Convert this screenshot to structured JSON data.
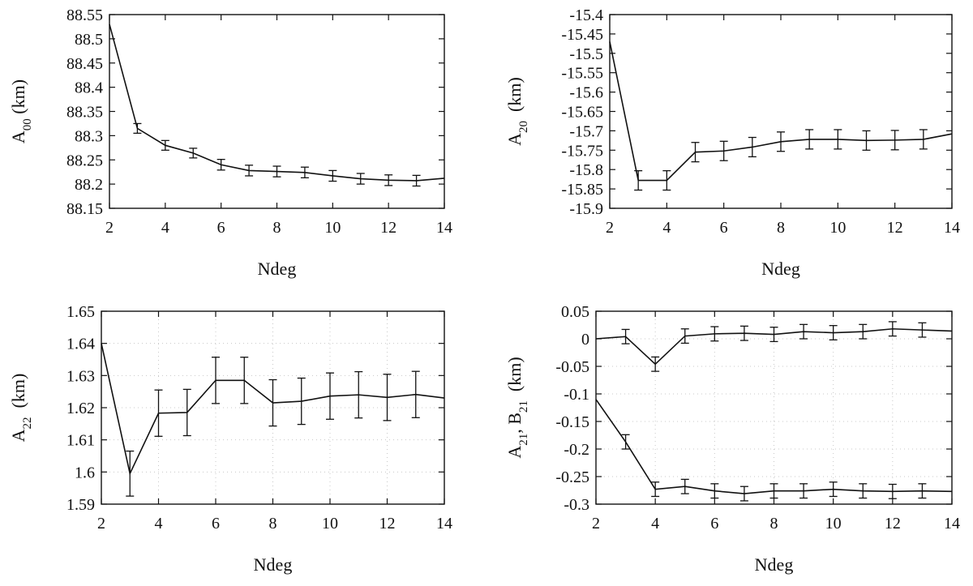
{
  "chart_data": [
    {
      "type": "line",
      "xlabel": "Ndeg",
      "ylabel": {
        "base": "A",
        "sub": "00",
        "unit": " (km)"
      },
      "xlim": [
        2,
        14
      ],
      "ylim": [
        88.15,
        88.55
      ],
      "xticks": [
        2,
        4,
        6,
        8,
        10,
        12,
        14
      ],
      "yticks": [
        "88.15",
        "88.2",
        "88.25",
        "88.3",
        "88.35",
        "88.4",
        "88.45",
        "88.5",
        "88.55"
      ],
      "grid": false,
      "series": [
        {
          "x": [
            2,
            3,
            4,
            5,
            6,
            7,
            8,
            9,
            10,
            11,
            12,
            13,
            14
          ],
          "y": [
            88.53,
            88.315,
            88.28,
            88.264,
            88.24,
            88.228,
            88.226,
            88.224,
            88.217,
            88.211,
            88.208,
            88.207,
            88.212
          ],
          "err": [
            0,
            0.01,
            0.01,
            0.01,
            0.011,
            0.011,
            0.011,
            0.011,
            0.011,
            0.011,
            0.011,
            0.011,
            0
          ]
        }
      ]
    },
    {
      "type": "line",
      "xlabel": "Ndeg",
      "ylabel": {
        "base": "A",
        "sub": "20",
        "unit": "  (km)"
      },
      "xlim": [
        2,
        14
      ],
      "ylim": [
        -15.9,
        -15.4
      ],
      "xticks": [
        2,
        4,
        6,
        8,
        10,
        12,
        14
      ],
      "yticks": [
        "-15.9",
        "-15.85",
        "-15.8",
        "-15.75",
        "-15.7",
        "-15.65",
        "-15.6",
        "-15.55",
        "-15.5",
        "-15.45",
        "-15.4"
      ],
      "grid": false,
      "series": [
        {
          "x": [
            2,
            3,
            4,
            5,
            6,
            7,
            8,
            9,
            10,
            11,
            12,
            13,
            14
          ],
          "y": [
            -15.47,
            -15.828,
            -15.828,
            -15.755,
            -15.752,
            -15.742,
            -15.728,
            -15.722,
            -15.722,
            -15.725,
            -15.724,
            -15.722,
            -15.708
          ],
          "err": [
            0,
            0.025,
            0.025,
            0.025,
            0.025,
            0.025,
            0.025,
            0.025,
            0.025,
            0.025,
            0.025,
            0.025,
            0
          ]
        }
      ]
    },
    {
      "type": "line",
      "xlabel": "Ndeg",
      "ylabel": {
        "base": "A",
        "sub": "22",
        "unit": "  (km)"
      },
      "xlim": [
        2,
        14
      ],
      "ylim": [
        1.59,
        1.65
      ],
      "xticks": [
        2,
        4,
        6,
        8,
        10,
        12,
        14
      ],
      "yticks": [
        "1.59",
        "1.6",
        "1.61",
        "1.62",
        "1.63",
        "1.64",
        "1.65"
      ],
      "grid": true,
      "series": [
        {
          "x": [
            2,
            3,
            4,
            5,
            6,
            7,
            8,
            9,
            10,
            11,
            12,
            13,
            14
          ],
          "y": [
            1.64,
            1.5995,
            1.6183,
            1.6185,
            1.6285,
            1.6285,
            1.6215,
            1.622,
            1.6236,
            1.624,
            1.6232,
            1.6241,
            1.623
          ],
          "err": [
            0,
            0.007,
            0.0072,
            0.0072,
            0.0072,
            0.0072,
            0.0072,
            0.0072,
            0.0072,
            0.0072,
            0.0072,
            0.0072,
            0
          ]
        }
      ]
    },
    {
      "type": "line",
      "xlabel": "Ndeg",
      "ylabel": {
        "base": "A",
        "sub": "21",
        "mid": ", B",
        "sub2": "21",
        "unit": "  (km)"
      },
      "xlim": [
        2,
        14
      ],
      "ylim": [
        -0.3,
        0.05
      ],
      "xticks": [
        2,
        4,
        6,
        8,
        10,
        12,
        14
      ],
      "yticks": [
        "-0.3",
        "-0.25",
        "-0.2",
        "-0.15",
        "-0.1",
        "-0.05",
        "0",
        "0.05"
      ],
      "grid": true,
      "series": [
        {
          "x": [
            2,
            3,
            4,
            5,
            6,
            7,
            8,
            9,
            10,
            11,
            12,
            13,
            14
          ],
          "y": [
            0.0,
            0.004,
            -0.046,
            0.005,
            0.009,
            0.01,
            0.008,
            0.013,
            0.011,
            0.013,
            0.018,
            0.016,
            0.014
          ],
          "err": [
            0,
            0.013,
            0.013,
            0.013,
            0.013,
            0.013,
            0.013,
            0.013,
            0.013,
            0.013,
            0.013,
            0.013,
            0
          ]
        },
        {
          "x": [
            2,
            3,
            4,
            5,
            6,
            7,
            8,
            9,
            10,
            11,
            12,
            13,
            14
          ],
          "y": [
            -0.11,
            -0.187,
            -0.273,
            -0.268,
            -0.276,
            -0.281,
            -0.276,
            -0.276,
            -0.273,
            -0.276,
            -0.277,
            -0.276,
            -0.277
          ],
          "err": [
            0,
            0.013,
            0.013,
            0.013,
            0.013,
            0.013,
            0.013,
            0.013,
            0.013,
            0.013,
            0.013,
            0.013,
            0
          ]
        }
      ]
    }
  ]
}
